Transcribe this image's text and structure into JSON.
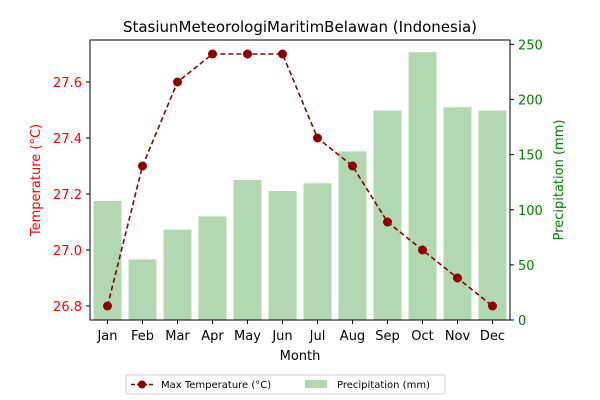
{
  "chart_data": {
    "type": "bar+line",
    "title": "StasiunMeteorologiMaritimBelawan (Indonesia)",
    "xlabel": "Month",
    "y_left_label": "Temperature (°C)",
    "y_right_label": "Precipitation (mm)",
    "categories": [
      "Jan",
      "Feb",
      "Mar",
      "Apr",
      "May",
      "Jun",
      "Jul",
      "Aug",
      "Sep",
      "Oct",
      "Nov",
      "Dec"
    ],
    "y_left_ticks": [
      "26.8",
      "27.0",
      "27.2",
      "27.4",
      "27.6"
    ],
    "y_right_ticks": [
      "0",
      "50",
      "100",
      "150",
      "200",
      "250"
    ],
    "y_left_range": [
      26.75,
      27.75
    ],
    "y_right_range": [
      0,
      254
    ],
    "series": [
      {
        "name": "Max Temperature (°C)",
        "kind": "line",
        "axis": "left",
        "color": "#8b0000",
        "values": [
          26.8,
          27.3,
          27.6,
          27.7,
          27.7,
          27.7,
          27.4,
          27.3,
          27.1,
          27.0,
          26.9,
          26.8
        ]
      },
      {
        "name": "Precipitation (mm)",
        "kind": "bar",
        "axis": "right",
        "color": "#b2d8b2",
        "values": [
          108,
          55,
          82,
          94,
          127,
          117,
          124,
          153,
          190,
          243,
          193,
          190
        ]
      }
    ],
    "left_axis_color": "#ff0000",
    "right_axis_color": "#008000",
    "legend_placement": "bottom-center",
    "grid": false
  }
}
